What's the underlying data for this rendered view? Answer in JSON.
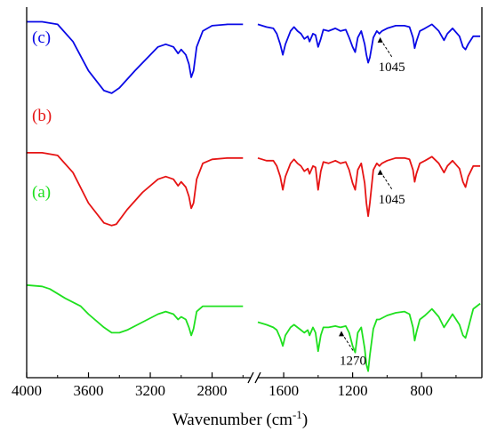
{
  "chart_data": {
    "type": "line",
    "xlabel": "Wavenumber (cm",
    "xlabel_sup": "-1",
    "xlabel_tail": ")",
    "x_axis": {
      "reversed": true,
      "broken": true,
      "segments": [
        {
          "range": [
            4000,
            2550
          ],
          "ticks": [
            4000,
            3600,
            3200,
            2800
          ]
        },
        {
          "range": [
            1750,
            450
          ],
          "ticks": [
            1600,
            1200,
            800
          ]
        }
      ]
    },
    "y_axis": {
      "ticks_shown": false,
      "note": "offset transmittance, arbitrary units"
    },
    "series": [
      {
        "name": "(c)",
        "color": "#0a0ae6",
        "offset": 2.0,
        "points": [
          [
            4000,
            0.97
          ],
          [
            3900,
            0.97
          ],
          [
            3800,
            0.95
          ],
          [
            3700,
            0.82
          ],
          [
            3600,
            0.6
          ],
          [
            3500,
            0.45
          ],
          [
            3450,
            0.43
          ],
          [
            3400,
            0.47
          ],
          [
            3300,
            0.6
          ],
          [
            3200,
            0.72
          ],
          [
            3150,
            0.78
          ],
          [
            3100,
            0.8
          ],
          [
            3050,
            0.78
          ],
          [
            3020,
            0.73
          ],
          [
            3000,
            0.76
          ],
          [
            2970,
            0.72
          ],
          [
            2950,
            0.65
          ],
          [
            2935,
            0.55
          ],
          [
            2920,
            0.6
          ],
          [
            2900,
            0.78
          ],
          [
            2860,
            0.9
          ],
          [
            2800,
            0.94
          ],
          [
            2700,
            0.95
          ],
          [
            2600,
            0.95
          ],
          [
            1750,
            0.95
          ],
          [
            1700,
            0.93
          ],
          [
            1660,
            0.92
          ],
          [
            1640,
            0.88
          ],
          [
            1620,
            0.8
          ],
          [
            1605,
            0.72
          ],
          [
            1590,
            0.8
          ],
          [
            1560,
            0.9
          ],
          [
            1540,
            0.93
          ],
          [
            1520,
            0.9
          ],
          [
            1500,
            0.88
          ],
          [
            1480,
            0.84
          ],
          [
            1460,
            0.86
          ],
          [
            1450,
            0.82
          ],
          [
            1430,
            0.88
          ],
          [
            1415,
            0.87
          ],
          [
            1400,
            0.78
          ],
          [
            1385,
            0.84
          ],
          [
            1370,
            0.91
          ],
          [
            1340,
            0.9
          ],
          [
            1300,
            0.92
          ],
          [
            1270,
            0.9
          ],
          [
            1240,
            0.91
          ],
          [
            1220,
            0.85
          ],
          [
            1200,
            0.78
          ],
          [
            1185,
            0.74
          ],
          [
            1170,
            0.85
          ],
          [
            1150,
            0.9
          ],
          [
            1130,
            0.8
          ],
          [
            1120,
            0.72
          ],
          [
            1110,
            0.66
          ],
          [
            1100,
            0.7
          ],
          [
            1080,
            0.85
          ],
          [
            1060,
            0.9
          ],
          [
            1045,
            0.88
          ],
          [
            1030,
            0.9
          ],
          [
            1000,
            0.92
          ],
          [
            950,
            0.94
          ],
          [
            900,
            0.94
          ],
          [
            870,
            0.93
          ],
          [
            850,
            0.85
          ],
          [
            840,
            0.77
          ],
          [
            830,
            0.82
          ],
          [
            810,
            0.9
          ],
          [
            780,
            0.92
          ],
          [
            740,
            0.95
          ],
          [
            700,
            0.9
          ],
          [
            670,
            0.83
          ],
          [
            650,
            0.88
          ],
          [
            620,
            0.92
          ],
          [
            580,
            0.86
          ],
          [
            560,
            0.78
          ],
          [
            545,
            0.76
          ],
          [
            530,
            0.8
          ],
          [
            500,
            0.86
          ],
          [
            460,
            0.86
          ]
        ]
      },
      {
        "name": "(b)",
        "color": "#e61414",
        "offset": 1.0,
        "points": [
          [
            4000,
            0.98
          ],
          [
            3900,
            0.98
          ],
          [
            3800,
            0.96
          ],
          [
            3700,
            0.83
          ],
          [
            3600,
            0.6
          ],
          [
            3500,
            0.45
          ],
          [
            3450,
            0.43
          ],
          [
            3420,
            0.44
          ],
          [
            3350,
            0.55
          ],
          [
            3250,
            0.68
          ],
          [
            3150,
            0.78
          ],
          [
            3100,
            0.8
          ],
          [
            3050,
            0.78
          ],
          [
            3020,
            0.73
          ],
          [
            3000,
            0.76
          ],
          [
            2970,
            0.72
          ],
          [
            2950,
            0.65
          ],
          [
            2935,
            0.56
          ],
          [
            2920,
            0.6
          ],
          [
            2900,
            0.78
          ],
          [
            2860,
            0.9
          ],
          [
            2800,
            0.93
          ],
          [
            2700,
            0.94
          ],
          [
            2600,
            0.94
          ],
          [
            1750,
            0.94
          ],
          [
            1700,
            0.92
          ],
          [
            1660,
            0.92
          ],
          [
            1640,
            0.88
          ],
          [
            1620,
            0.8
          ],
          [
            1605,
            0.7
          ],
          [
            1590,
            0.8
          ],
          [
            1560,
            0.9
          ],
          [
            1540,
            0.93
          ],
          [
            1520,
            0.9
          ],
          [
            1500,
            0.88
          ],
          [
            1480,
            0.84
          ],
          [
            1460,
            0.86
          ],
          [
            1450,
            0.82
          ],
          [
            1430,
            0.88
          ],
          [
            1415,
            0.87
          ],
          [
            1400,
            0.7
          ],
          [
            1385,
            0.84
          ],
          [
            1370,
            0.91
          ],
          [
            1340,
            0.9
          ],
          [
            1300,
            0.92
          ],
          [
            1270,
            0.9
          ],
          [
            1240,
            0.91
          ],
          [
            1220,
            0.85
          ],
          [
            1200,
            0.75
          ],
          [
            1185,
            0.7
          ],
          [
            1170,
            0.85
          ],
          [
            1150,
            0.9
          ],
          [
            1130,
            0.75
          ],
          [
            1120,
            0.6
          ],
          [
            1110,
            0.5
          ],
          [
            1100,
            0.6
          ],
          [
            1080,
            0.85
          ],
          [
            1060,
            0.9
          ],
          [
            1045,
            0.88
          ],
          [
            1030,
            0.9
          ],
          [
            1000,
            0.92
          ],
          [
            950,
            0.94
          ],
          [
            900,
            0.94
          ],
          [
            870,
            0.93
          ],
          [
            850,
            0.85
          ],
          [
            840,
            0.76
          ],
          [
            830,
            0.82
          ],
          [
            810,
            0.9
          ],
          [
            780,
            0.92
          ],
          [
            740,
            0.95
          ],
          [
            700,
            0.9
          ],
          [
            670,
            0.83
          ],
          [
            650,
            0.88
          ],
          [
            620,
            0.92
          ],
          [
            580,
            0.86
          ],
          [
            560,
            0.76
          ],
          [
            545,
            0.72
          ],
          [
            530,
            0.8
          ],
          [
            500,
            0.88
          ],
          [
            460,
            0.88
          ]
        ]
      },
      {
        "name": "(a)",
        "color": "#1fe01f",
        "offset": 0.0,
        "points": [
          [
            4000,
            0.98
          ],
          [
            3900,
            0.97
          ],
          [
            3850,
            0.95
          ],
          [
            3750,
            0.88
          ],
          [
            3650,
            0.82
          ],
          [
            3600,
            0.76
          ],
          [
            3500,
            0.66
          ],
          [
            3450,
            0.62
          ],
          [
            3400,
            0.62
          ],
          [
            3350,
            0.64
          ],
          [
            3250,
            0.7
          ],
          [
            3150,
            0.76
          ],
          [
            3100,
            0.78
          ],
          [
            3050,
            0.76
          ],
          [
            3020,
            0.72
          ],
          [
            3000,
            0.74
          ],
          [
            2970,
            0.72
          ],
          [
            2950,
            0.66
          ],
          [
            2935,
            0.6
          ],
          [
            2920,
            0.65
          ],
          [
            2900,
            0.78
          ],
          [
            2860,
            0.82
          ],
          [
            2800,
            0.82
          ],
          [
            2700,
            0.82
          ],
          [
            2600,
            0.82
          ],
          [
            1750,
            0.7
          ],
          [
            1700,
            0.68
          ],
          [
            1660,
            0.66
          ],
          [
            1640,
            0.64
          ],
          [
            1620,
            0.58
          ],
          [
            1605,
            0.52
          ],
          [
            1590,
            0.6
          ],
          [
            1560,
            0.66
          ],
          [
            1540,
            0.68
          ],
          [
            1520,
            0.66
          ],
          [
            1500,
            0.64
          ],
          [
            1480,
            0.62
          ],
          [
            1460,
            0.64
          ],
          [
            1450,
            0.6
          ],
          [
            1430,
            0.66
          ],
          [
            1415,
            0.62
          ],
          [
            1400,
            0.48
          ],
          [
            1385,
            0.6
          ],
          [
            1370,
            0.66
          ],
          [
            1340,
            0.66
          ],
          [
            1300,
            0.67
          ],
          [
            1270,
            0.66
          ],
          [
            1240,
            0.67
          ],
          [
            1220,
            0.62
          ],
          [
            1200,
            0.52
          ],
          [
            1185,
            0.47
          ],
          [
            1170,
            0.62
          ],
          [
            1150,
            0.66
          ],
          [
            1130,
            0.5
          ],
          [
            1120,
            0.38
          ],
          [
            1110,
            0.33
          ],
          [
            1100,
            0.45
          ],
          [
            1080,
            0.65
          ],
          [
            1060,
            0.72
          ],
          [
            1045,
            0.72
          ],
          [
            1030,
            0.73
          ],
          [
            1000,
            0.75
          ],
          [
            950,
            0.77
          ],
          [
            900,
            0.78
          ],
          [
            870,
            0.76
          ],
          [
            850,
            0.66
          ],
          [
            840,
            0.56
          ],
          [
            830,
            0.62
          ],
          [
            810,
            0.72
          ],
          [
            780,
            0.75
          ],
          [
            740,
            0.8
          ],
          [
            700,
            0.74
          ],
          [
            670,
            0.66
          ],
          [
            650,
            0.7
          ],
          [
            620,
            0.76
          ],
          [
            580,
            0.68
          ],
          [
            560,
            0.6
          ],
          [
            545,
            0.58
          ],
          [
            530,
            0.65
          ],
          [
            500,
            0.8
          ],
          [
            460,
            0.84
          ]
        ]
      }
    ],
    "annotations": [
      {
        "text": "1045",
        "series": "(c)",
        "x": 1045
      },
      {
        "text": "1045",
        "series": "(b)",
        "x": 1045
      },
      {
        "text": "1270",
        "series": "(a)",
        "x": 1270
      }
    ]
  }
}
